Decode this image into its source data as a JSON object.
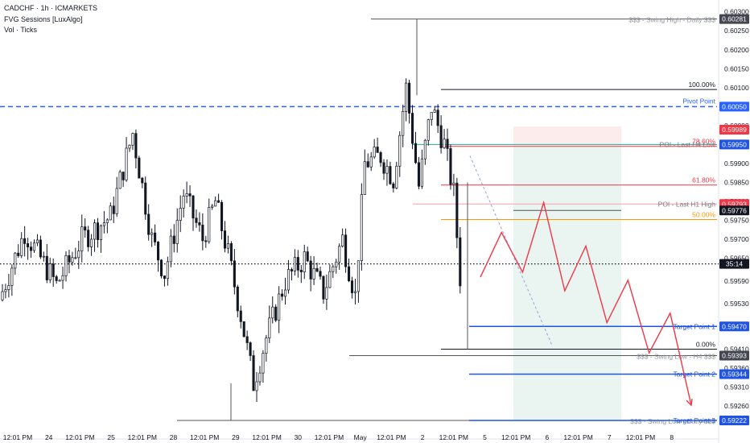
{
  "header": {
    "symbol_line": "CADCHF · 1h · ICMARKETS",
    "indicator_1": "FVG Sessions [LuxAlgo]",
    "indicator_2": "Vol · Ticks"
  },
  "colors": {
    "candle": "#131722",
    "pivot": "#2962ff",
    "fib_red": "#f23645",
    "fib_orange": "#ff9800",
    "target": "#1e53e5",
    "path": "#f23645",
    "swing": "#787b86"
  },
  "chart_data": {
    "type": "candlestick",
    "title": "CADCHF · 1h · ICMARKETS",
    "ylim": [
      0.5919,
      0.6031
    ],
    "y_ticks": [
      "0.60300",
      "0.60250",
      "0.60200",
      "0.60150",
      "0.60100",
      "0.60050",
      "0.60000",
      "0.59950",
      "0.59900",
      "0.59850",
      "0.59800",
      "0.59750",
      "0.59700",
      "0.59650",
      "0.59590",
      "0.59530",
      "0.59470",
      "0.59410",
      "0.59360",
      "0.59310",
      "0.59260",
      "0.59222"
    ],
    "x_ticks": [
      "12:01 PM",
      "24",
      "12:01 PM",
      "25",
      "12:01 PM",
      "28",
      "12:01 PM",
      "29",
      "12:01 PM",
      "30",
      "12:01 PM",
      "May",
      "12:01 PM",
      "2",
      "12:01 PM",
      "5",
      "12:01 PM",
      "6",
      "12:01 PM",
      "7",
      "12:01 PM",
      "8"
    ],
    "price_labels": [
      {
        "text": "0.60281",
        "kind": "swing"
      },
      {
        "text": "0.60050",
        "kind": "pivot"
      },
      {
        "text": "0.59989",
        "kind": "red"
      },
      {
        "text": "0.59950",
        "kind": "target"
      },
      {
        "text": "0.59793",
        "kind": "red"
      },
      {
        "text": "0.59776",
        "kind": "dark"
      },
      {
        "text": "35:14",
        "kind": "dark"
      },
      {
        "text": "0.59470",
        "kind": "target"
      },
      {
        "text": "0.59393",
        "kind": "swing"
      },
      {
        "text": "0.59344",
        "kind": "target"
      },
      {
        "text": "0.59222",
        "kind": "target"
      }
    ],
    "levels": [
      {
        "label": "$$$ - Swing High - Daily $$$",
        "price": 0.60281,
        "kind": "swing"
      },
      {
        "label": "100.00%",
        "price": 0.60095,
        "kind": "fib"
      },
      {
        "label": "Pivot Point",
        "price": 0.6005,
        "kind": "pivot"
      },
      {
        "label": "POI - Last H4 Low",
        "price": 0.5995,
        "kind": "poi"
      },
      {
        "label": "78.60%",
        "price": 0.59945,
        "kind": "fibred"
      },
      {
        "label": "61.80%",
        "price": 0.59843,
        "kind": "fibred"
      },
      {
        "label": "POI - Last H1 High",
        "price": 0.59793,
        "kind": "poi"
      },
      {
        "label": "50.00%",
        "price": 0.59752,
        "kind": "fiborange"
      },
      {
        "label": "Target Point 1",
        "price": 0.5947,
        "kind": "target"
      },
      {
        "label": "0.00%",
        "price": 0.5941,
        "kind": "fib"
      },
      {
        "label": "$$$ - Swing Low - H4 $$$",
        "price": 0.59393,
        "kind": "swing"
      },
      {
        "label": "Target Point 2",
        "price": 0.59344,
        "kind": "target"
      },
      {
        "label": "$$$ - Swing Low - Daily $$$",
        "price": 0.59222,
        "kind": "swing"
      },
      {
        "label": "Target Point 3",
        "price": 0.59222,
        "kind": "target"
      }
    ],
    "current_price": 0.59635,
    "projection_path": [
      0.596,
      0.59718,
      0.59613,
      0.59797,
      0.59564,
      0.59682,
      0.5948,
      0.59592,
      0.594,
      0.59505,
      0.59262
    ]
  }
}
